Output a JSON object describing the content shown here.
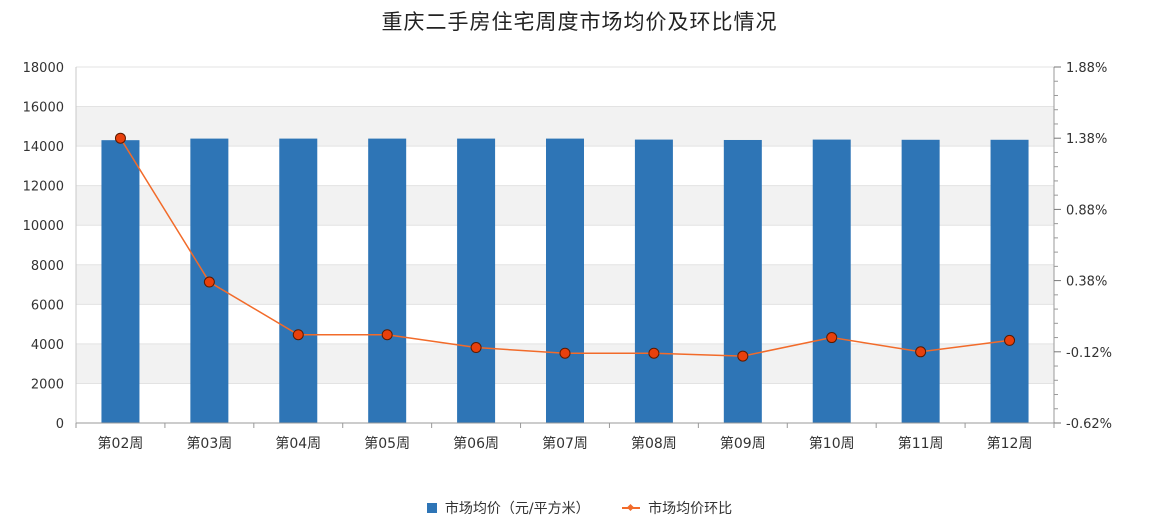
{
  "chart_data": {
    "type": "bar",
    "title": "重庆二手房住宅周度市场均价及环比情况",
    "categories": [
      "第02周",
      "第03周",
      "第04周",
      "第05周",
      "第06周",
      "第07周",
      "第08周",
      "第09周",
      "第10周",
      "第11周",
      "第12周"
    ],
    "series": [
      {
        "name": "市场均价（元/平方米）",
        "type": "bar",
        "axis": "left",
        "color": "#2e75b6",
        "values": [
          14300,
          14380,
          14380,
          14380,
          14380,
          14380,
          14330,
          14310,
          14330,
          14320,
          14320
        ]
      },
      {
        "name": "市场均价环比",
        "type": "line",
        "axis": "right",
        "color": "#f26b2a",
        "marker_fill": "#e8400c",
        "values": [
          1.38,
          0.37,
          0.0,
          0.0,
          -0.09,
          -0.13,
          -0.13,
          -0.15,
          -0.02,
          -0.12,
          -0.04
        ]
      }
    ],
    "y_left": {
      "min": 0,
      "max": 18000,
      "ticks": [
        0,
        2000,
        4000,
        6000,
        8000,
        10000,
        12000,
        14000,
        16000,
        18000
      ]
    },
    "y_right": {
      "min": -0.62,
      "max": 1.88,
      "ticks": [
        "-0.62%",
        "-0.12%",
        "0.38%",
        "0.88%",
        "1.38%",
        "1.88%"
      ],
      "tick_values": [
        -0.62,
        -0.12,
        0.38,
        0.88,
        1.38,
        1.88
      ]
    },
    "grid": true,
    "legend_position": "bottom"
  }
}
